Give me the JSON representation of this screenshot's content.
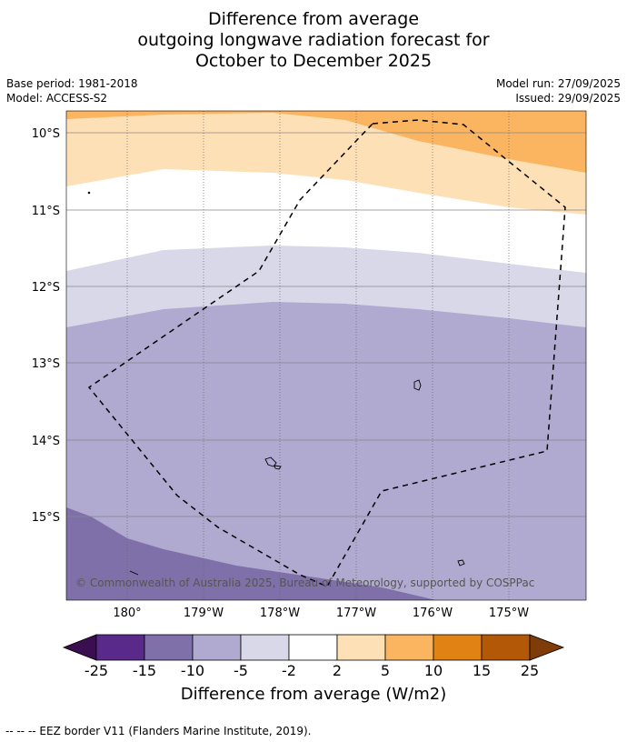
{
  "title": {
    "line1": "Difference from average",
    "line2": "outgoing longwave radiation forecast for",
    "line3": "October to December 2025"
  },
  "meta": {
    "base_period": "Base period: 1981-2018",
    "model": "Model: ACCESS-S2",
    "model_run": "Model run: 27/09/2025",
    "issued": "Issued: 29/09/2025"
  },
  "map": {
    "lat_labels": [
      "10°S",
      "11°S",
      "12°S",
      "13°S",
      "14°S",
      "15°S"
    ],
    "lon_labels": [
      "180°",
      "179°W",
      "178°W",
      "177°W",
      "176°W",
      "175°W"
    ],
    "copyright": "© Commonwealth of Australia 2025, Bureau of Meteorology, supported by COSPPac"
  },
  "colorbar": {
    "ticks": [
      "-25",
      "-15",
      "-10",
      "-5",
      "-2",
      "2",
      "5",
      "10",
      "15",
      "25"
    ],
    "colors": [
      "#3b0f4f",
      "#5a2a8a",
      "#7f70aa",
      "#b0a9d0",
      "#d8d8e8",
      "#ffffff",
      "#fde0b6",
      "#fbb45f",
      "#e08214",
      "#b35806",
      "#7f3b08"
    ],
    "label": "Difference from average (W/m2)"
  },
  "legend": {
    "eez": "--  --  -- EEZ border V11 (Flanders Marine Institute, 2019)."
  }
}
